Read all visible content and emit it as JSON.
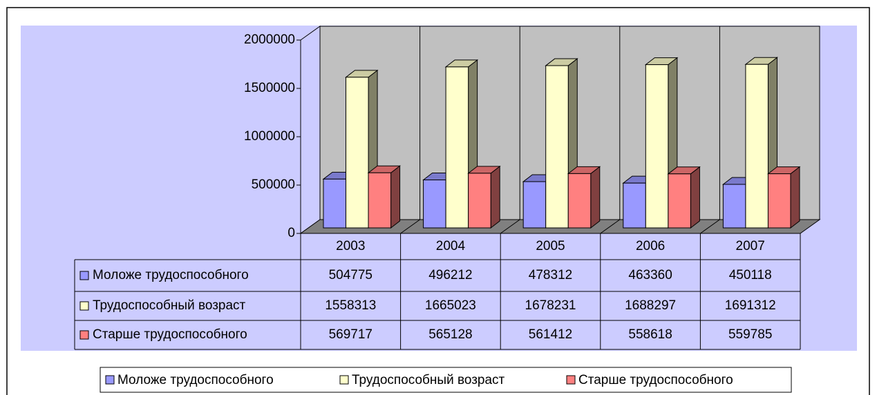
{
  "chart_data": {
    "type": "bar3d",
    "categories": [
      "2003",
      "2004",
      "2005",
      "2006",
      "2007"
    ],
    "series": [
      {
        "name": "Моложе трудоспособного",
        "color": "#9999ff",
        "values": [
          504775,
          496212,
          478312,
          463360,
          450118
        ]
      },
      {
        "name": "Трудоспособный возраст",
        "color": "#ffffcc",
        "values": [
          1558313,
          1665023,
          1678231,
          1688297,
          1691312
        ]
      },
      {
        "name": "Старше трудоспособного",
        "color": "#ff8080",
        "values": [
          569717,
          565128,
          561412,
          558618,
          559785
        ]
      }
    ],
    "ylim": [
      0,
      2000000
    ],
    "yticks": [
      0,
      500000,
      1000000,
      1500000,
      2000000
    ],
    "legend": "bottom",
    "data_table": true
  }
}
